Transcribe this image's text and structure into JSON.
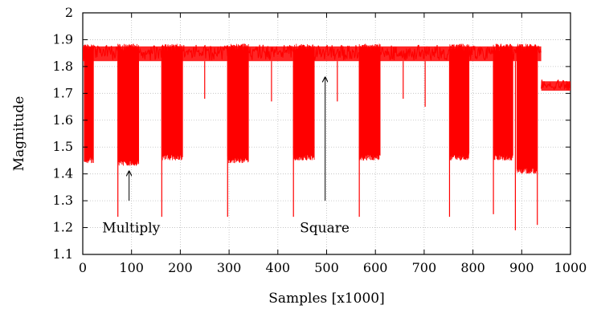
{
  "chart_data": {
    "type": "line",
    "title": "",
    "xlabel": "Samples [x1000]",
    "ylabel": "Magnitude",
    "xlim": [
      0,
      1000
    ],
    "ylim": [
      1.1,
      2.0
    ],
    "x_ticks": [
      0,
      100,
      200,
      300,
      400,
      500,
      600,
      700,
      800,
      900,
      1000
    ],
    "y_ticks": [
      1.1,
      1.2,
      1.3,
      1.4,
      1.5,
      1.6,
      1.7,
      1.8,
      1.9,
      2.0
    ],
    "x_tick_labels": [
      "0",
      "100",
      "200",
      "300",
      "400",
      "500",
      "600",
      "700",
      "800",
      "900",
      "1000"
    ],
    "y_tick_labels": [
      "1.1",
      "1.2",
      "1.3",
      "1.4",
      "1.5",
      "1.6",
      "1.7",
      "1.8",
      "1.9",
      "2"
    ],
    "grid": true,
    "series_color": "#ff0000",
    "series": [
      {
        "baseline_segments": [
          {
            "x_start": 0,
            "x_end": 940,
            "low": 1.81,
            "high": 1.88
          },
          {
            "x_start": 940,
            "x_end": 1000,
            "low": 1.7,
            "high": 1.75
          }
        ],
        "deep_bands": [
          {
            "x_start": 3,
            "x_end": 22,
            "low": 1.44
          },
          {
            "x_start": 72,
            "x_end": 115,
            "low": 1.43
          },
          {
            "x_start": 162,
            "x_end": 205,
            "low": 1.45
          },
          {
            "x_start": 297,
            "x_end": 340,
            "low": 1.44
          },
          {
            "x_start": 432,
            "x_end": 475,
            "low": 1.45
          },
          {
            "x_start": 567,
            "x_end": 610,
            "low": 1.45
          },
          {
            "x_start": 752,
            "x_end": 792,
            "low": 1.45
          },
          {
            "x_start": 842,
            "x_end": 882,
            "low": 1.45
          },
          {
            "x_start": 890,
            "x_end": 932,
            "low": 1.4
          }
        ],
        "spikes": [
          {
            "x": 72,
            "y": 1.24
          },
          {
            "x": 162,
            "y": 1.24
          },
          {
            "x": 250,
            "y": 1.68
          },
          {
            "x": 297,
            "y": 1.24
          },
          {
            "x": 387,
            "y": 1.67
          },
          {
            "x": 432,
            "y": 1.24
          },
          {
            "x": 522,
            "y": 1.67
          },
          {
            "x": 567,
            "y": 1.24
          },
          {
            "x": 657,
            "y": 1.68
          },
          {
            "x": 702,
            "y": 1.65
          },
          {
            "x": 752,
            "y": 1.24
          },
          {
            "x": 842,
            "y": 1.25
          },
          {
            "x": 887,
            "y": 1.19
          },
          {
            "x": 932,
            "y": 1.21
          }
        ]
      }
    ],
    "annotations": [
      {
        "text": "Multiply",
        "text_x": 40,
        "text_y": 1.2,
        "arrow_from": [
          95,
          1.3
        ],
        "arrow_to": [
          95,
          1.41
        ]
      },
      {
        "text": "Square",
        "text_x": 445,
        "text_y": 1.2,
        "arrow_from": [
          497,
          1.3
        ],
        "arrow_to": [
          497,
          1.76
        ]
      }
    ]
  }
}
